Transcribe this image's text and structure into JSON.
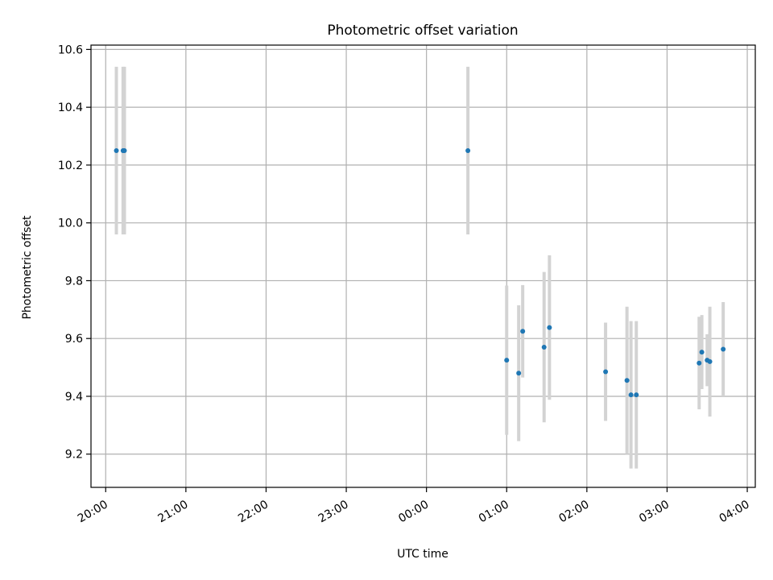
{
  "chart_data": {
    "type": "scatter",
    "title": "Photometric offset variation",
    "xlabel": "UTC time",
    "ylabel": "Photometric offset",
    "xlim": [
      "19:49",
      "04:06"
    ],
    "ylim": [
      9.085,
      10.615
    ],
    "x_ticks": [
      "20:00",
      "21:00",
      "22:00",
      "23:00",
      "00:00",
      "01:00",
      "02:00",
      "03:00",
      "04:00"
    ],
    "y_ticks": [
      9.2,
      9.4,
      9.6,
      9.8,
      10.0,
      10.2,
      10.4,
      10.6
    ],
    "grid": true,
    "colors": {
      "points": "#1f77b4",
      "errorbars": "#d3d3d3",
      "grid": "#b0b0b0"
    },
    "points": [
      {
        "x": "20:08",
        "y": 10.25,
        "err": 0.29
      },
      {
        "x": "20:13",
        "y": 10.25,
        "err": 0.29
      },
      {
        "x": "20:14",
        "y": 10.25,
        "err": 0.29
      },
      {
        "x": "00:31",
        "y": 10.25,
        "err": 0.29
      },
      {
        "x": "01:00",
        "y": 9.525,
        "err": 0.258
      },
      {
        "x": "01:09",
        "y": 9.48,
        "err": 0.235
      },
      {
        "x": "01:12",
        "y": 9.625,
        "err": 0.16
      },
      {
        "x": "01:28",
        "y": 9.57,
        "err": 0.26
      },
      {
        "x": "01:32",
        "y": 9.638,
        "err": 0.25
      },
      {
        "x": "02:14",
        "y": 9.485,
        "err": 0.17
      },
      {
        "x": "02:30",
        "y": 9.455,
        "err": 0.255
      },
      {
        "x": "02:33",
        "y": 9.405,
        "err": 0.255
      },
      {
        "x": "02:37",
        "y": 9.405,
        "err": 0.255
      },
      {
        "x": "03:24",
        "y": 9.515,
        "err": 0.16
      },
      {
        "x": "03:26",
        "y": 9.553,
        "err": 0.128
      },
      {
        "x": "03:30",
        "y": 9.525,
        "err": 0.09
      },
      {
        "x": "03:32",
        "y": 9.52,
        "err": 0.19
      },
      {
        "x": "03:42",
        "y": 9.563,
        "err": 0.163
      }
    ]
  }
}
